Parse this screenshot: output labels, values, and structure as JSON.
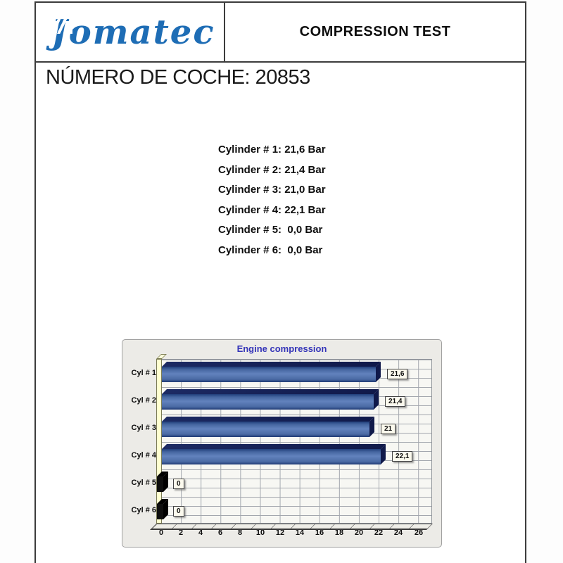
{
  "header": {
    "logo_text": "Jomatec",
    "title": "COMPRESSION TEST"
  },
  "car_number": "NÚMERO DE COCHE: 20853",
  "readings": [
    "Cylinder # 1: 21,6 Bar",
    "Cylinder # 2: 21,4 Bar",
    "Cylinder # 3: 21,0 Bar",
    "Cylinder # 4: 22,1 Bar",
    "Cylinder # 5:  0,0 Bar",
    "Cylinder # 6:  0,0 Bar"
  ],
  "colors": {
    "logo_blue": "#1e6db5",
    "chart_title_blue": "#3434b8",
    "bar_front_blue": "#5a7ab8",
    "bar_face_navy": "#10194a",
    "wall_yellow": "#ffffd0",
    "value_box_cream": "#fcfaee",
    "panel_gray": "#ecebe7"
  },
  "chart_data": {
    "type": "bar",
    "orientation": "horizontal",
    "title": "Engine compression",
    "categories": [
      "Cyl # 1",
      "Cyl # 2",
      "Cyl # 3",
      "Cyl # 4",
      "Cyl # 5",
      "Cyl # 6"
    ],
    "values": [
      21.6,
      21.4,
      21.0,
      22.1,
      0,
      0
    ],
    "value_labels": [
      "21,6",
      "21,4",
      "21",
      "22,1",
      "0",
      "0"
    ],
    "xlim": [
      0,
      26
    ],
    "xticks": [
      0,
      2,
      4,
      6,
      8,
      10,
      12,
      14,
      16,
      18,
      20,
      22,
      24,
      26
    ],
    "grid": true,
    "legend": "none",
    "style": "3d"
  }
}
